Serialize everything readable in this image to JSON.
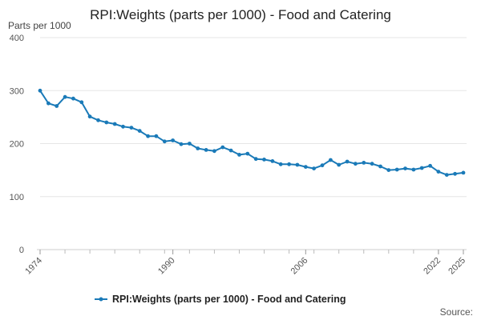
{
  "chart_data": {
    "type": "line",
    "title": "RPI:Weights (parts per 1000) - Food and Catering",
    "ylabel": "Parts per 1000",
    "xlabel": "",
    "ylim": [
      0,
      400
    ],
    "yticks": [
      0,
      100,
      200,
      300,
      400
    ],
    "xlim": [
      1974,
      2025
    ],
    "xticks": [
      1974,
      1990,
      2006,
      2022,
      2025
    ],
    "grid": true,
    "legend_position": "bottom-center",
    "source_label": "Source:",
    "series": [
      {
        "name": "RPI:Weights (parts per 1000) - Food and Catering",
        "color": "#1a7ab8",
        "x": [
          1974,
          1975,
          1976,
          1977,
          1978,
          1979,
          1980,
          1981,
          1982,
          1983,
          1984,
          1985,
          1986,
          1987,
          1988,
          1989,
          1990,
          1991,
          1992,
          1993,
          1994,
          1995,
          1996,
          1997,
          1998,
          1999,
          2000,
          2001,
          2002,
          2003,
          2004,
          2005,
          2006,
          2007,
          2008,
          2009,
          2010,
          2011,
          2012,
          2013,
          2014,
          2015,
          2016,
          2017,
          2018,
          2019,
          2020,
          2021,
          2022,
          2023,
          2024,
          2025
        ],
        "values": [
          300,
          276,
          271,
          288,
          285,
          278,
          251,
          244,
          240,
          237,
          232,
          230,
          224,
          214,
          214,
          204,
          206,
          199,
          200,
          191,
          188,
          186,
          193,
          187,
          179,
          181,
          171,
          170,
          167,
          161,
          161,
          160,
          156,
          153,
          159,
          169,
          160,
          166,
          162,
          164,
          162,
          157,
          150,
          151,
          153,
          151,
          154,
          158,
          147,
          141,
          143,
          145
        ]
      }
    ]
  }
}
